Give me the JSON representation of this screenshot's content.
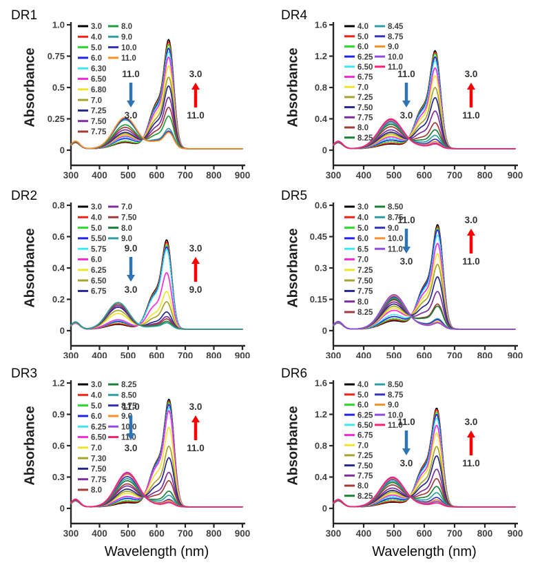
{
  "figure": {
    "xlabel": "Wavelength (nm)",
    "ylabel": "Absorbance"
  },
  "style": {
    "down_arrow_color": "#2E74B5",
    "up_arrow_color": "#FF0000",
    "axis_color": "#262626",
    "tick_text_color": "#3F3F3F",
    "legend_text_color": "#404040",
    "annotation_text_color": "#333333"
  },
  "chart_data": [
    {
      "type": "line",
      "title": "DR1",
      "xlabel": "Wavelength (nm)",
      "ylabel": "Absorbance",
      "xlim": [
        300,
        900
      ],
      "ylim": [
        0,
        1.0
      ],
      "xticks": [
        300,
        400,
        500,
        600,
        700,
        800,
        900
      ],
      "ytick_labels": [
        "1.0",
        "0.75",
        "0.5",
        "0.25",
        "0"
      ],
      "band1_nm": 490,
      "band2_nm": 644,
      "legend_split": 11,
      "annotations": {
        "down": {
          "top": "11.0",
          "bottom": "3.0"
        },
        "up": {
          "top": "3.0",
          "bottom": "11.0"
        }
      },
      "series": [
        {
          "ph": "3.0",
          "color": "#000000",
          "band2_abs": 0.87,
          "band1_abs": 0.05
        },
        {
          "ph": "4.0",
          "color": "#F82114",
          "band2_abs": 0.85,
          "band1_abs": 0.055
        },
        {
          "ph": "5.0",
          "color": "#27DD27",
          "band2_abs": 0.83,
          "band1_abs": 0.06
        },
        {
          "ph": "6.0",
          "color": "#2222EE",
          "band2_abs": 0.8,
          "band1_abs": 0.08
        },
        {
          "ph": "6.30",
          "color": "#3CE6EF",
          "band2_abs": 0.77,
          "band1_abs": 0.09
        },
        {
          "ph": "6.50",
          "color": "#FA2CDC",
          "band2_abs": 0.73,
          "band1_abs": 0.1
        },
        {
          "ph": "6.80",
          "color": "#F0E52E",
          "band2_abs": 0.66,
          "band1_abs": 0.11
        },
        {
          "ph": "7.0",
          "color": "#A8A32C",
          "band2_abs": 0.57,
          "band1_abs": 0.12
        },
        {
          "ph": "7.25",
          "color": "#26268F",
          "band2_abs": 0.5,
          "band1_abs": 0.13
        },
        {
          "ph": "7.50",
          "color": "#7C2E9E",
          "band2_abs": 0.41,
          "band1_abs": 0.15
        },
        {
          "ph": "7.75",
          "color": "#A33A36",
          "band2_abs": 0.33,
          "band1_abs": 0.17
        },
        {
          "ph": "8.0",
          "color": "#1D9C3A",
          "band2_abs": 0.26,
          "band1_abs": 0.19
        },
        {
          "ph": "9.0",
          "color": "#2E9FA0",
          "band2_abs": 0.16,
          "band1_abs": 0.23
        },
        {
          "ph": "10.0",
          "color": "#3232B2",
          "band2_abs": 0.14,
          "band1_abs": 0.24
        },
        {
          "ph": "11.0",
          "color": "#FC8F26",
          "band2_abs": 0.13,
          "band1_abs": 0.25
        }
      ]
    },
    {
      "type": "line",
      "title": "DR2",
      "xlabel": "Wavelength (nm)",
      "ylabel": "Absorbance",
      "xlim": [
        300,
        900
      ],
      "ylim": [
        0,
        0.8
      ],
      "xticks": [
        300,
        400,
        500,
        600,
        700,
        800,
        900
      ],
      "ytick_labels": [
        "0.8",
        "0.6",
        "0.4",
        "0.2",
        "0"
      ],
      "band1_nm": 465,
      "band2_nm": 637,
      "legend_split": 9,
      "annotations": {
        "down": {
          "top": "9.0",
          "bottom": "3.0"
        },
        "up": {
          "top": "3.0",
          "bottom": "9.0"
        }
      },
      "series": [
        {
          "ph": "3.0",
          "color": "#000000",
          "band2_abs": 0.57,
          "band1_abs": 0.03
        },
        {
          "ph": "4.0",
          "color": "#F82114",
          "band2_abs": 0.555,
          "band1_abs": 0.035
        },
        {
          "ph": "5.0",
          "color": "#27DD27",
          "band2_abs": 0.54,
          "band1_abs": 0.045
        },
        {
          "ph": "5.50",
          "color": "#2222EE",
          "band2_abs": 0.525,
          "band1_abs": 0.05
        },
        {
          "ph": "5.75",
          "color": "#3CE6EF",
          "band2_abs": 0.51,
          "band1_abs": 0.055
        },
        {
          "ph": "6.0",
          "color": "#FA2CDC",
          "band2_abs": 0.36,
          "band1_abs": 0.06
        },
        {
          "ph": "6.25",
          "color": "#F0E52E",
          "band2_abs": 0.24,
          "band1_abs": 0.1
        },
        {
          "ph": "6.50",
          "color": "#A8A32C",
          "band2_abs": 0.175,
          "band1_abs": 0.12
        },
        {
          "ph": "6.75",
          "color": "#26268F",
          "band2_abs": 0.11,
          "band1_abs": 0.14
        },
        {
          "ph": "7.0",
          "color": "#7C2E9E",
          "band2_abs": 0.08,
          "band1_abs": 0.15
        },
        {
          "ph": "7.50",
          "color": "#A33A36",
          "band2_abs": 0.065,
          "band1_abs": 0.16
        },
        {
          "ph": "8.0",
          "color": "#1A8038",
          "band2_abs": 0.05,
          "band1_abs": 0.17
        },
        {
          "ph": "9.0",
          "color": "#2E9FA0",
          "band2_abs": 0.04,
          "band1_abs": 0.17
        }
      ]
    },
    {
      "type": "line",
      "title": "DR3",
      "xlabel": "Wavelength (nm)",
      "ylabel": "Absorbance",
      "xlim": [
        300,
        900
      ],
      "ylim": [
        0,
        1.2
      ],
      "xticks": [
        300,
        400,
        500,
        600,
        700,
        800,
        900
      ],
      "ytick_labels": [
        "1.2",
        "0.9",
        "0.6",
        "0.3",
        "0"
      ],
      "band1_nm": 497,
      "band2_nm": 645,
      "legend_split": 11,
      "annotations": {
        "down": {
          "top": "11.0",
          "bottom": "3.0"
        },
        "up": {
          "top": "3.0",
          "bottom": "11.0"
        }
      },
      "series": [
        {
          "ph": "3.0",
          "color": "#000000",
          "band2_abs": 1.03,
          "band1_abs": 0.04
        },
        {
          "ph": "4.0",
          "color": "#F82114",
          "band2_abs": 1.01,
          "band1_abs": 0.05
        },
        {
          "ph": "5.0",
          "color": "#27DD27",
          "band2_abs": 1.0,
          "band1_abs": 0.06
        },
        {
          "ph": "6.0",
          "color": "#2222EE",
          "band2_abs": 0.98,
          "band1_abs": 0.08
        },
        {
          "ph": "6.25",
          "color": "#3CE6EF",
          "band2_abs": 0.95,
          "band1_abs": 0.09
        },
        {
          "ph": "6.50",
          "color": "#FA2CDC",
          "band2_abs": 0.92,
          "band1_abs": 0.1
        },
        {
          "ph": "7.0",
          "color": "#F0E52E",
          "band2_abs": 0.76,
          "band1_abs": 0.13
        },
        {
          "ph": "7.30",
          "color": "#A8A32C",
          "band2_abs": 0.58,
          "band1_abs": 0.15
        },
        {
          "ph": "7.50",
          "color": "#26268F",
          "band2_abs": 0.47,
          "band1_abs": 0.17
        },
        {
          "ph": "7.75",
          "color": "#7C2E9E",
          "band2_abs": 0.33,
          "band1_abs": 0.2
        },
        {
          "ph": "8.0",
          "color": "#A33A36",
          "band2_abs": 0.25,
          "band1_abs": 0.22
        },
        {
          "ph": "8.25",
          "color": "#1A8038",
          "band2_abs": 0.15,
          "band1_abs": 0.25
        },
        {
          "ph": "8.50",
          "color": "#2E9FA0",
          "band2_abs": 0.11,
          "band1_abs": 0.27
        },
        {
          "ph": "8.75",
          "color": "#3232B2",
          "band2_abs": 0.07,
          "band1_abs": 0.29
        },
        {
          "ph": "9.0",
          "color": "#FC8F26",
          "band2_abs": 0.06,
          "band1_abs": 0.31
        },
        {
          "ph": "10.0",
          "color": "#8F48E0",
          "band2_abs": 0.045,
          "band1_abs": 0.32
        },
        {
          "ph": "11.0",
          "color": "#FB2273",
          "band2_abs": 0.04,
          "band1_abs": 0.33
        }
      ]
    },
    {
      "type": "line",
      "title": "DR4",
      "xlabel": "Wavelength (nm)",
      "ylabel": "Absorbance",
      "xlim": [
        300,
        900
      ],
      "ylim": [
        0,
        1.6
      ],
      "xticks": [
        300,
        400,
        500,
        600,
        700,
        800,
        900
      ],
      "ytick_labels": [
        "1.6",
        "1.2",
        "0.8",
        "0.4",
        "0"
      ],
      "band1_nm": 490,
      "band2_nm": 638,
      "legend_split": 12,
      "annotations": {
        "down": {
          "top": "11.0",
          "bottom": "3.0"
        },
        "up": {
          "top": "3.0",
          "bottom": "11.0"
        }
      },
      "series": [
        {
          "ph": "4.0",
          "color": "#000000",
          "band2_abs": 1.25,
          "band1_abs": 0.06
        },
        {
          "ph": "5.0",
          "color": "#F82114",
          "band2_abs": 1.23,
          "band1_abs": 0.07
        },
        {
          "ph": "6.0",
          "color": "#27DD27",
          "band2_abs": 1.21,
          "band1_abs": 0.09
        },
        {
          "ph": "6.25",
          "color": "#2222EE",
          "band2_abs": 1.17,
          "band1_abs": 0.11
        },
        {
          "ph": "6.50",
          "color": "#3CE6EF",
          "band2_abs": 1.12,
          "band1_abs": 0.13
        },
        {
          "ph": "6.75",
          "color": "#FA2CDC",
          "band2_abs": 1.03,
          "band1_abs": 0.15
        },
        {
          "ph": "7.0",
          "color": "#F0E52E",
          "band2_abs": 0.93,
          "band1_abs": 0.17
        },
        {
          "ph": "7.25",
          "color": "#A8A32C",
          "band2_abs": 0.78,
          "band1_abs": 0.19
        },
        {
          "ph": "7.50",
          "color": "#26268F",
          "band2_abs": 0.65,
          "band1_abs": 0.21
        },
        {
          "ph": "7.75",
          "color": "#7C2E9E",
          "band2_abs": 0.48,
          "band1_abs": 0.24
        },
        {
          "ph": "8.0",
          "color": "#A33A36",
          "band2_abs": 0.33,
          "band1_abs": 0.28
        },
        {
          "ph": "8.25",
          "color": "#1A8038",
          "band2_abs": 0.24,
          "band1_abs": 0.31
        },
        {
          "ph": "8.45",
          "color": "#2E9FA0",
          "band2_abs": 0.17,
          "band1_abs": 0.33
        },
        {
          "ph": "8.75",
          "color": "#3434C4",
          "band2_abs": 0.12,
          "band1_abs": 0.35
        },
        {
          "ph": "9.0",
          "color": "#FC8F26",
          "band2_abs": 0.09,
          "band1_abs": 0.36
        },
        {
          "ph": "10.0",
          "color": "#8F48E0",
          "band2_abs": 0.07,
          "band1_abs": 0.37
        },
        {
          "ph": "11.0",
          "color": "#FB2273",
          "band2_abs": 0.06,
          "band1_abs": 0.38
        }
      ]
    },
    {
      "type": "line",
      "title": "DR5",
      "xlabel": "Wavelength (nm)",
      "ylabel": "Absorbance",
      "xlim": [
        300,
        900
      ],
      "ylim": [
        0,
        0.6
      ],
      "xticks": [
        300,
        400,
        500,
        600,
        700,
        800,
        900
      ],
      "ytick_labels": [
        "0.6",
        "0.45",
        "0.3",
        "0.15",
        "0"
      ],
      "band1_nm": 500,
      "band2_nm": 646,
      "legend_split": 11,
      "annotations": {
        "down": {
          "top": "11.0",
          "bottom": "3.0"
        },
        "up": {
          "top": "3.0",
          "bottom": "11.0"
        }
      },
      "series": [
        {
          "ph": "3.0",
          "color": "#000000",
          "band2_abs": 0.5,
          "band1_abs": 0.04
        },
        {
          "ph": "4.0",
          "color": "#F82114",
          "band2_abs": 0.49,
          "band1_abs": 0.045
        },
        {
          "ph": "5.0",
          "color": "#27DD27",
          "band2_abs": 0.485,
          "band1_abs": 0.05
        },
        {
          "ph": "6.0",
          "color": "#2222EE",
          "band2_abs": 0.475,
          "band1_abs": 0.06
        },
        {
          "ph": "6.5",
          "color": "#3CE6EF",
          "band2_abs": 0.45,
          "band1_abs": 0.07
        },
        {
          "ph": "7.0",
          "color": "#FA2CDC",
          "band2_abs": 0.41,
          "band1_abs": 0.09
        },
        {
          "ph": "7.25",
          "color": "#F0E52E",
          "band2_abs": 0.36,
          "band1_abs": 0.1
        },
        {
          "ph": "7.50",
          "color": "#A8A32C",
          "band2_abs": 0.31,
          "band1_abs": 0.11
        },
        {
          "ph": "7.75",
          "color": "#26268F",
          "band2_abs": 0.25,
          "band1_abs": 0.12
        },
        {
          "ph": "8.0",
          "color": "#7C2E9E",
          "band2_abs": 0.18,
          "band1_abs": 0.13
        },
        {
          "ph": "8.25",
          "color": "#A33A36",
          "band2_abs": 0.12,
          "band1_abs": 0.14
        },
        {
          "ph": "8.50",
          "color": "#1A8038",
          "band2_abs": 0.11,
          "band1_abs": 0.145
        },
        {
          "ph": "8.75",
          "color": "#2E9FA0",
          "band2_abs": 0.05,
          "band1_abs": 0.15
        },
        {
          "ph": "9.0",
          "color": "#3434C4",
          "band2_abs": 0.045,
          "band1_abs": 0.155
        },
        {
          "ph": "10.0",
          "color": "#FC8F26",
          "band2_abs": 0.035,
          "band1_abs": 0.16
        },
        {
          "ph": "11.0",
          "color": "#8F48E0",
          "band2_abs": 0.03,
          "band1_abs": 0.165
        }
      ]
    },
    {
      "type": "line",
      "title": "DR6",
      "xlabel": "Wavelength (nm)",
      "ylabel": "Absorbance",
      "xlim": [
        300,
        900
      ],
      "ylim": [
        0,
        1.6
      ],
      "xticks": [
        300,
        400,
        500,
        600,
        700,
        800,
        900
      ],
      "ytick_labels": [
        "1.6",
        "1.2",
        "0.8",
        "0.4",
        "0"
      ],
      "band1_nm": 495,
      "band2_nm": 643,
      "legend_split": 12,
      "annotations": {
        "down": {
          "top": "11.0",
          "bottom": "3.0"
        },
        "up": {
          "top": "3.0",
          "bottom": "11.0"
        }
      },
      "series": [
        {
          "ph": "4.0",
          "color": "#000000",
          "band2_abs": 1.26,
          "band1_abs": 0.06
        },
        {
          "ph": "5.0",
          "color": "#F82114",
          "band2_abs": 1.24,
          "band1_abs": 0.07
        },
        {
          "ph": "6.0",
          "color": "#27DD27",
          "band2_abs": 1.21,
          "band1_abs": 0.09
        },
        {
          "ph": "6.25",
          "color": "#2222EE",
          "band2_abs": 1.18,
          "band1_abs": 0.11
        },
        {
          "ph": "6.50",
          "color": "#3CE6EF",
          "band2_abs": 1.13,
          "band1_abs": 0.13
        },
        {
          "ph": "6.75",
          "color": "#FA2CDC",
          "band2_abs": 1.04,
          "band1_abs": 0.15
        },
        {
          "ph": "7.0",
          "color": "#F0E52E",
          "band2_abs": 0.94,
          "band1_abs": 0.17
        },
        {
          "ph": "7.25",
          "color": "#A8A32C",
          "band2_abs": 0.77,
          "band1_abs": 0.19
        },
        {
          "ph": "7.50",
          "color": "#26268F",
          "band2_abs": 0.65,
          "band1_abs": 0.21
        },
        {
          "ph": "7.75",
          "color": "#7C2E9E",
          "band2_abs": 0.48,
          "band1_abs": 0.24
        },
        {
          "ph": "8.0",
          "color": "#A33A36",
          "band2_abs": 0.36,
          "band1_abs": 0.28
        },
        {
          "ph": "8.25",
          "color": "#1A8038",
          "band2_abs": 0.26,
          "band1_abs": 0.31
        },
        {
          "ph": "8.50",
          "color": "#2E9FA0",
          "band2_abs": 0.18,
          "band1_abs": 0.33
        },
        {
          "ph": "8.75",
          "color": "#3434C4",
          "band2_abs": 0.12,
          "band1_abs": 0.35
        },
        {
          "ph": "9.0",
          "color": "#FC8F26",
          "band2_abs": 0.09,
          "band1_abs": 0.36
        },
        {
          "ph": "10.0",
          "color": "#8F48E0",
          "band2_abs": 0.07,
          "band1_abs": 0.37
        },
        {
          "ph": "11.0",
          "color": "#FB2273",
          "band2_abs": 0.05,
          "band1_abs": 0.38
        }
      ]
    }
  ]
}
